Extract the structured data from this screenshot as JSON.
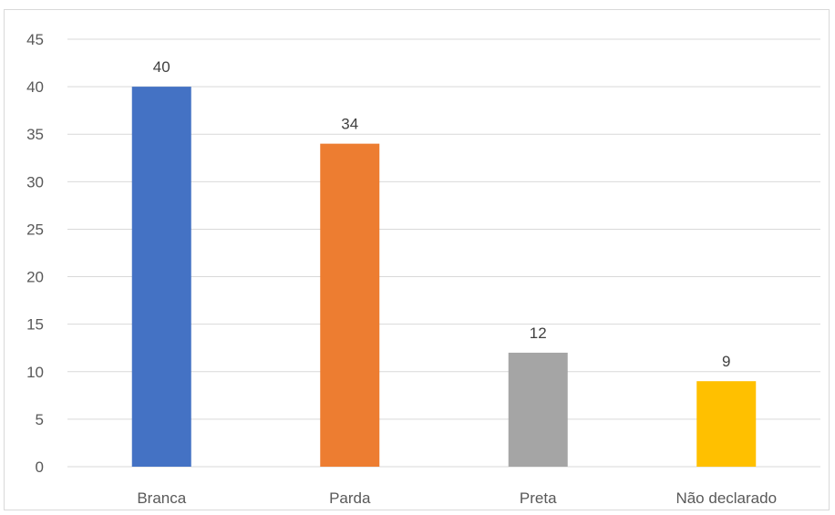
{
  "chart_data": {
    "type": "bar",
    "categories": [
      "Branca",
      "Parda",
      "Preta",
      "Não declarado"
    ],
    "values": [
      40,
      34,
      12,
      9
    ],
    "colors": [
      "#4472C4",
      "#ED7D31",
      "#A5A5A5",
      "#FFC000"
    ],
    "data_labels": [
      "40",
      "34",
      "12",
      "9"
    ],
    "title": "",
    "xlabel": "",
    "ylabel": "",
    "ylim": [
      0,
      45
    ],
    "yticks": [
      "0",
      "5",
      "10",
      "15",
      "20",
      "25",
      "30",
      "35",
      "40",
      "45"
    ],
    "grid": true,
    "legend": "none"
  }
}
